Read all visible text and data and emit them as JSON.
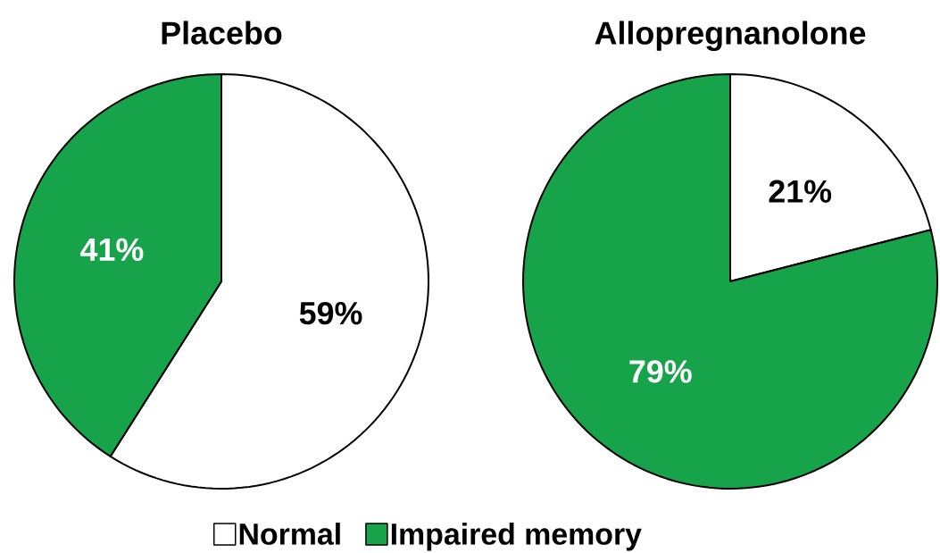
{
  "chart_data": [
    {
      "type": "pie",
      "title": "Placebo",
      "categories": [
        "Normal",
        "Impaired memory"
      ],
      "values": [
        59,
        41
      ],
      "value_labels": [
        "59%",
        "41%"
      ],
      "colors": [
        "#ffffff",
        "#16a34a"
      ],
      "legend": "bottom"
    },
    {
      "type": "pie",
      "title": "Allopregnanolone",
      "categories": [
        null,
        null
      ],
      "values": [
        21,
        79
      ],
      "value_labels": [
        "21%",
        "79%"
      ],
      "colors": [
        "#ffffff",
        "#16a34a"
      ]
    }
  ]
}
